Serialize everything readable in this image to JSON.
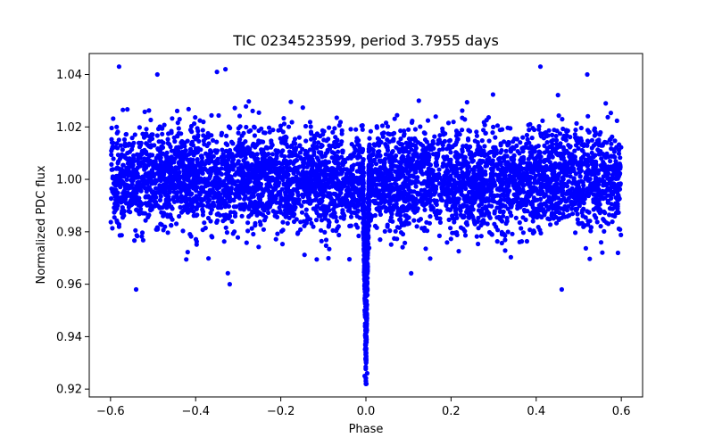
{
  "chart_data": {
    "type": "scatter",
    "title": "TIC 0234523599, period 3.7955 days",
    "xlabel": "Phase",
    "ylabel": "Normalized PDC flux",
    "xlim": [
      -0.65,
      0.65
    ],
    "ylim": [
      0.917,
      1.048
    ],
    "xticks": [
      -0.6,
      -0.4,
      -0.2,
      0.0,
      0.2,
      0.4,
      0.6
    ],
    "xtick_labels": [
      "−0.6",
      "−0.4",
      "−0.2",
      "0.0",
      "0.2",
      "0.4",
      "0.6"
    ],
    "yticks": [
      0.92,
      0.94,
      0.96,
      0.98,
      1.0,
      1.02,
      1.04
    ],
    "ytick_labels": [
      "0.92",
      "0.94",
      "0.96",
      "0.98",
      "1.00",
      "1.02",
      "1.04"
    ],
    "marker_color": "#0000ff",
    "series": [
      {
        "name": "PDC flux",
        "description_of_distribution": "phase-folded light curve",
        "phase_range": [
          -0.6,
          0.6
        ],
        "baseline_flux": 1.0,
        "baseline_scatter_core": [
          0.98,
          1.02
        ],
        "outlier_extent": [
          0.958,
          1.043
        ],
        "transit_center_phase": 0.0,
        "transit_depth_min_flux": 0.922,
        "transit_halfwidth_phase": 0.008
      }
    ],
    "highlight_points": [
      {
        "x": -0.58,
        "y": 1.043
      },
      {
        "x": 0.41,
        "y": 1.043
      },
      {
        "x": -0.35,
        "y": 1.041
      },
      {
        "x": -0.33,
        "y": 1.042
      },
      {
        "x": -0.49,
        "y": 1.04
      },
      {
        "x": 0.52,
        "y": 1.04
      },
      {
        "x": -0.54,
        "y": 0.958
      },
      {
        "x": 0.46,
        "y": 0.958
      },
      {
        "x": -0.32,
        "y": 0.96
      },
      {
        "x": 0.001,
        "y": 0.922
      },
      {
        "x": -0.003,
        "y": 0.925
      },
      {
        "x": 0.003,
        "y": 0.926
      }
    ]
  }
}
